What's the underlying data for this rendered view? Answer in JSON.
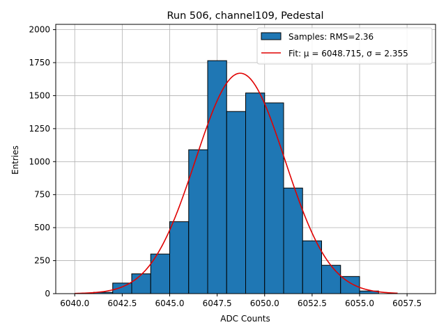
{
  "chart_data": {
    "type": "bar",
    "title": "Run 506, channel109, Pedestal",
    "xlabel": "ADC Counts",
    "ylabel": "Entries",
    "xlim": [
      39.0,
      59.0
    ],
    "ylim": [
      0,
      2040
    ],
    "x_tick_offset": 6000,
    "x_ticks": [
      "6040.0",
      "6042.5",
      "6045.0",
      "6047.5",
      "6050.0",
      "6052.5",
      "6055.0",
      "6057.5"
    ],
    "x_tick_values": [
      6040.0,
      6042.5,
      6045.0,
      6047.5,
      6050.0,
      6052.5,
      6055.0,
      6057.5
    ],
    "y_ticks": [
      "0",
      "250",
      "500",
      "750",
      "1000",
      "1250",
      "1500",
      "1750",
      "2000"
    ],
    "y_tick_values": [
      0,
      250,
      500,
      750,
      1000,
      1250,
      1500,
      1750,
      2000
    ],
    "grid": true,
    "legend_position": "top-right",
    "bin_edges": [
      6041,
      6042,
      6043,
      6044,
      6045,
      6046,
      6047,
      6048,
      6049,
      6050,
      6051,
      6052,
      6053,
      6054,
      6055,
      6056
    ],
    "counts": [
      10,
      80,
      150,
      300,
      545,
      1090,
      1765,
      1380,
      1520,
      1445,
      800,
      400,
      215,
      130,
      20
    ],
    "series": [
      {
        "name": "Samples: RMS=2.36",
        "kind": "histogram",
        "color": "#1f77b4",
        "edge_color": "#000000"
      },
      {
        "name": "Fit: μ = 6048.715, σ = 2.355",
        "kind": "line",
        "color": "#e00000",
        "mu": 6048.715,
        "sigma": 2.355,
        "amplitude": 1670,
        "x_range": [
          6040.0,
          6057.0
        ]
      }
    ]
  }
}
